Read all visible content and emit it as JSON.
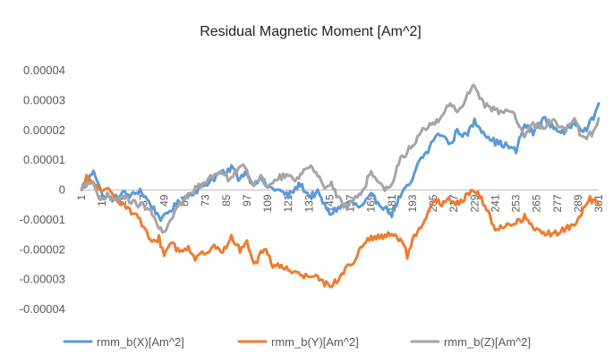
{
  "chart_data": {
    "type": "line",
    "title": "Residual Magnetic Moment [Am^2]",
    "xlabel": "",
    "ylabel": "",
    "x_start": 1,
    "x_end": 301,
    "x_step": 1,
    "x_tick_labels": [
      "1",
      "13",
      "25",
      "37",
      "49",
      "61",
      "73",
      "85",
      "97",
      "109",
      "121",
      "133",
      "145",
      "157",
      "169",
      "181",
      "193",
      "205",
      "217",
      "229",
      "241",
      "253",
      "265",
      "277",
      "289",
      "301"
    ],
    "y_tick_labels": [
      "0.00004",
      "0.00003",
      "0.00002",
      "0.00001",
      "0",
      "-0.00001",
      "-0.00002",
      "-0.00003",
      "-0.00004"
    ],
    "ylim": [
      -4e-05,
      4e-05
    ],
    "grid": false,
    "legend_position": "bottom",
    "series": [
      {
        "name": "rmm_b(X)[Am^2]",
        "color": "#5B9BD5",
        "anchors": [
          [
            1,
            0
          ],
          [
            5,
            3e-06
          ],
          [
            8,
            7e-06
          ],
          [
            11,
            2e-06
          ],
          [
            13,
            -2e-06
          ],
          [
            20,
            -3e-06
          ],
          [
            25,
            -1e-06
          ],
          [
            30,
            -2e-06
          ],
          [
            35,
            0
          ],
          [
            40,
            -4e-06
          ],
          [
            45,
            -8e-06
          ],
          [
            48,
            -1e-05
          ],
          [
            52,
            -7e-06
          ],
          [
            58,
            -4e-06
          ],
          [
            62,
            -2e-06
          ],
          [
            68,
            0
          ],
          [
            73,
            2e-06
          ],
          [
            78,
            4e-06
          ],
          [
            82,
            6e-06
          ],
          [
            85,
            5e-06
          ],
          [
            88,
            8e-06
          ],
          [
            92,
            4e-06
          ],
          [
            97,
            6e-06
          ],
          [
            100,
            2e-06
          ],
          [
            105,
            4e-06
          ],
          [
            109,
            1e-06
          ],
          [
            115,
            0
          ],
          [
            121,
            -2e-06
          ],
          [
            128,
            2e-06
          ],
          [
            133,
            -2e-06
          ],
          [
            138,
            -1e-06
          ],
          [
            145,
            -8e-06
          ],
          [
            150,
            -6e-06
          ],
          [
            157,
            -4e-06
          ],
          [
            163,
            -6e-06
          ],
          [
            169,
            -2e-06
          ],
          [
            175,
            -5e-06
          ],
          [
            181,
            -8e-06
          ],
          [
            185,
            -3e-06
          ],
          [
            190,
            1e-06
          ],
          [
            193,
            3e-06
          ],
          [
            197,
            1e-05
          ],
          [
            202,
            1.3e-05
          ],
          [
            205,
            1.7e-05
          ],
          [
            210,
            1.9e-05
          ],
          [
            215,
            1.5e-05
          ],
          [
            219,
            2e-05
          ],
          [
            224,
            1.8e-05
          ],
          [
            229,
            2.3e-05
          ],
          [
            235,
            1.9e-05
          ],
          [
            241,
            1.6e-05
          ],
          [
            247,
            1.5e-05
          ],
          [
            253,
            1.3e-05
          ],
          [
            258,
            2.2e-05
          ],
          [
            263,
            1.9e-05
          ],
          [
            269,
            2.4e-05
          ],
          [
            275,
            2.1e-05
          ],
          [
            281,
            1.9e-05
          ],
          [
            287,
            2.3e-05
          ],
          [
            293,
            2e-05
          ],
          [
            298,
            2.4e-05
          ],
          [
            301,
            2.9e-05
          ]
        ]
      },
      {
        "name": "rmm_b(Y)[Am^2]",
        "color": "#ED7D31",
        "anchors": [
          [
            1,
            0
          ],
          [
            4,
            4e-06
          ],
          [
            7,
            3e-06
          ],
          [
            10,
            1e-06
          ],
          [
            13,
            -1e-06
          ],
          [
            17,
            0
          ],
          [
            22,
            -3e-06
          ],
          [
            28,
            -6e-06
          ],
          [
            35,
            -1e-05
          ],
          [
            39,
            -1.5e-05
          ],
          [
            42,
            -1.8e-05
          ],
          [
            46,
            -1.6e-05
          ],
          [
            49,
            -2.2e-05
          ],
          [
            53,
            -1.7e-05
          ],
          [
            58,
            -2.1e-05
          ],
          [
            63,
            -1.9e-05
          ],
          [
            67,
            -2.3e-05
          ],
          [
            73,
            -2.1e-05
          ],
          [
            78,
            -1.8e-05
          ],
          [
            83,
            -2.1e-05
          ],
          [
            88,
            -1.6e-05
          ],
          [
            93,
            -2e-05
          ],
          [
            97,
            -1.8e-05
          ],
          [
            102,
            -2.5e-05
          ],
          [
            107,
            -1.9e-05
          ],
          [
            112,
            -2.5e-05
          ],
          [
            118,
            -2.6e-05
          ],
          [
            124,
            -2.7e-05
          ],
          [
            130,
            -2.9e-05
          ],
          [
            136,
            -2.8e-05
          ],
          [
            141,
            -3.1e-05
          ],
          [
            145,
            -3.2e-05
          ],
          [
            150,
            -3e-05
          ],
          [
            155,
            -2.6e-05
          ],
          [
            160,
            -2.3e-05
          ],
          [
            165,
            -1.8e-05
          ],
          [
            169,
            -1.6e-05
          ],
          [
            174,
            -1.6e-05
          ],
          [
            181,
            -1.5e-05
          ],
          [
            187,
            -1.7e-05
          ],
          [
            190,
            -2.2e-05
          ],
          [
            194,
            -1.6e-05
          ],
          [
            198,
            -1.3e-05
          ],
          [
            202,
            -8e-06
          ],
          [
            206,
            -3e-06
          ],
          [
            210,
            -5e-06
          ],
          [
            215,
            -3e-06
          ],
          [
            220,
            -5e-06
          ],
          [
            225,
            -1e-06
          ],
          [
            229,
            0
          ],
          [
            233,
            -3e-06
          ],
          [
            237,
            -8e-06
          ],
          [
            241,
            -1.3e-05
          ],
          [
            247,
            -1.2e-05
          ],
          [
            253,
            -1.1e-05
          ],
          [
            258,
            -9e-06
          ],
          [
            263,
            -1.3e-05
          ],
          [
            269,
            -1.4e-05
          ],
          [
            275,
            -1.5e-05
          ],
          [
            281,
            -1.3e-05
          ],
          [
            287,
            -1.2e-05
          ],
          [
            291,
            -8e-06
          ],
          [
            296,
            -3e-06
          ],
          [
            301,
            -5e-06
          ]
        ]
      },
      {
        "name": "rmm_b(Z)[Am^2]",
        "color": "#A5A5A5",
        "anchors": [
          [
            1,
            0
          ],
          [
            4,
            2e-06
          ],
          [
            8,
            3e-06
          ],
          [
            12,
            -4e-06
          ],
          [
            16,
            -2e-06
          ],
          [
            20,
            -4e-06
          ],
          [
            25,
            -2e-06
          ],
          [
            30,
            -4e-06
          ],
          [
            35,
            -5e-06
          ],
          [
            40,
            -6e-06
          ],
          [
            45,
            -1.2e-05
          ],
          [
            49,
            -1.5e-05
          ],
          [
            53,
            -9e-06
          ],
          [
            58,
            -5e-06
          ],
          [
            63,
            -2e-06
          ],
          [
            68,
            1e-06
          ],
          [
            73,
            3e-06
          ],
          [
            78,
            5e-06
          ],
          [
            82,
            7e-06
          ],
          [
            86,
            4e-06
          ],
          [
            90,
            6e-06
          ],
          [
            95,
            8e-06
          ],
          [
            100,
            2e-06
          ],
          [
            105,
            4e-06
          ],
          [
            110,
            1e-06
          ],
          [
            115,
            4e-06
          ],
          [
            121,
            5e-06
          ],
          [
            126,
            3e-06
          ],
          [
            130,
            7e-06
          ],
          [
            134,
            9e-06
          ],
          [
            138,
            5e-06
          ],
          [
            142,
            1e-06
          ],
          [
            146,
            2e-06
          ],
          [
            150,
            -3e-06
          ],
          [
            155,
            -6e-06
          ],
          [
            160,
            -3e-06
          ],
          [
            165,
            1e-06
          ],
          [
            169,
            6e-06
          ],
          [
            174,
            2e-06
          ],
          [
            179,
            0
          ],
          [
            182,
            4e-06
          ],
          [
            186,
            1e-05
          ],
          [
            190,
            1.3e-05
          ],
          [
            194,
            1.6e-05
          ],
          [
            199,
            2e-05
          ],
          [
            205,
            2.2e-05
          ],
          [
            210,
            2.5e-05
          ],
          [
            215,
            2.9e-05
          ],
          [
            220,
            2.6e-05
          ],
          [
            225,
            3.2e-05
          ],
          [
            229,
            3.5e-05
          ],
          [
            234,
            2.9e-05
          ],
          [
            240,
            2.7e-05
          ],
          [
            246,
            2.6e-05
          ],
          [
            252,
            2.5e-05
          ],
          [
            258,
            1.8e-05
          ],
          [
            263,
            2.2e-05
          ],
          [
            269,
            2.1e-05
          ],
          [
            275,
            2.4e-05
          ],
          [
            281,
            2e-05
          ],
          [
            287,
            2.3e-05
          ],
          [
            292,
            1.7e-05
          ],
          [
            297,
            1.9e-05
          ],
          [
            301,
            2.4e-05
          ]
        ]
      }
    ]
  }
}
